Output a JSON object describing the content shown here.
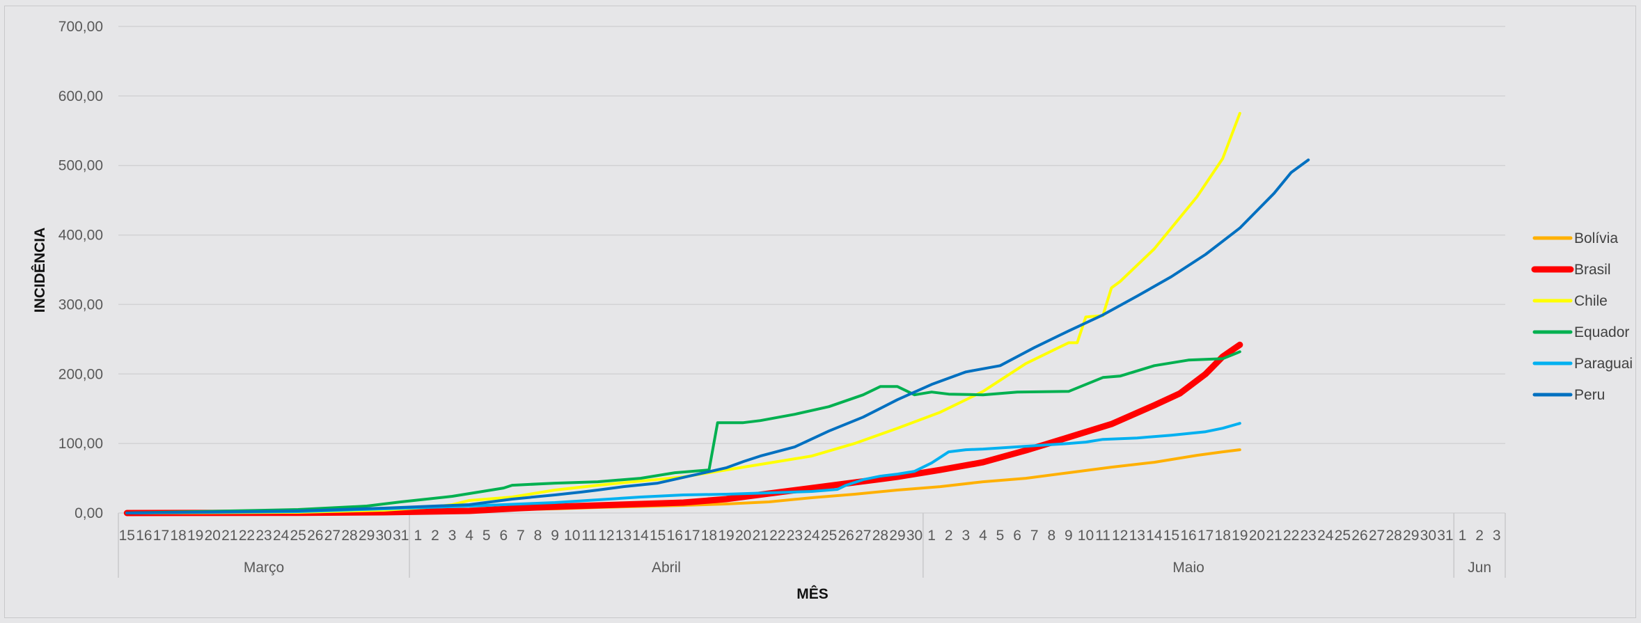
{
  "chart_data": {
    "type": "line",
    "xlabel": "MÊS",
    "ylabel": "INCIDÊNCIA",
    "ylim": [
      0,
      700
    ],
    "y_ticks": [
      "0,00",
      "100,00",
      "200,00",
      "300,00",
      "400,00",
      "500,00",
      "600,00",
      "700,00"
    ],
    "grid": true,
    "legend_position": "right",
    "x_days": [
      "15",
      "16",
      "17",
      "18",
      "19",
      "20",
      "21",
      "22",
      "23",
      "24",
      "25",
      "26",
      "27",
      "28",
      "29",
      "30",
      "31",
      "1",
      "2",
      "3",
      "4",
      "5",
      "6",
      "7",
      "8",
      "9",
      "10",
      "11",
      "12",
      "13",
      "14",
      "15",
      "16",
      "17",
      "18",
      "19",
      "20",
      "21",
      "22",
      "23",
      "24",
      "25",
      "26",
      "27",
      "28",
      "29",
      "30",
      "1",
      "2",
      "3",
      "4",
      "5",
      "6",
      "7",
      "8",
      "9",
      "10",
      "11",
      "12",
      "13",
      "14",
      "15",
      "16",
      "17",
      "18",
      "19",
      "20",
      "21",
      "22",
      "23",
      "24",
      "25",
      "26",
      "27",
      "28",
      "29",
      "30",
      "31",
      "1",
      "2",
      "3"
    ],
    "months": [
      {
        "label": "Março",
        "start": 0,
        "end": 16
      },
      {
        "label": "Abril",
        "start": 17,
        "end": 46
      },
      {
        "label": "Maio",
        "start": 47,
        "end": 77
      },
      {
        "label": "Jun",
        "start": 78,
        "end": 80
      }
    ],
    "series": [
      {
        "name": "Bolívia",
        "color": "#FFB000",
        "width": 4,
        "keys": [
          [
            0,
            0
          ],
          [
            20,
            0.5
          ],
          [
            30,
            2
          ],
          [
            40,
            4
          ],
          [
            50,
            6
          ],
          [
            55,
            8
          ],
          [
            65,
            11
          ],
          [
            70,
            13
          ],
          [
            75,
            16
          ],
          [
            80,
            22
          ],
          [
            85,
            27
          ],
          [
            90,
            33
          ],
          [
            95,
            38
          ],
          [
            100,
            45
          ],
          [
            105,
            50
          ],
          [
            110,
            58
          ],
          [
            115,
            66
          ],
          [
            120,
            73
          ],
          [
            125,
            83
          ],
          [
            128,
            88
          ],
          [
            130,
            91
          ]
        ]
      },
      {
        "name": "Brasil",
        "color": "#FF0000",
        "width": 9,
        "keys": [
          [
            0,
            0
          ],
          [
            20,
            0.3
          ],
          [
            30,
            1
          ],
          [
            35,
            2
          ],
          [
            40,
            3
          ],
          [
            43,
            5
          ],
          [
            46,
            7
          ],
          [
            50,
            9
          ],
          [
            55,
            11
          ],
          [
            60,
            13
          ],
          [
            65,
            15
          ],
          [
            70,
            20
          ],
          [
            75,
            28
          ],
          [
            80,
            36
          ],
          [
            85,
            44
          ],
          [
            90,
            52
          ],
          [
            95,
            62
          ],
          [
            100,
            73
          ],
          [
            105,
            90
          ],
          [
            110,
            109
          ],
          [
            115,
            128
          ],
          [
            120,
            155
          ],
          [
            123,
            172
          ],
          [
            126,
            200
          ],
          [
            128,
            225
          ],
          [
            130,
            242
          ]
        ]
      },
      {
        "name": "Chile",
        "color": "#FFFF00",
        "width": 4,
        "keys": [
          [
            0,
            0
          ],
          [
            20,
            1
          ],
          [
            30,
            4
          ],
          [
            35,
            8
          ],
          [
            38,
            12
          ],
          [
            40,
            18
          ],
          [
            45,
            23
          ],
          [
            50,
            33
          ],
          [
            55,
            40
          ],
          [
            60,
            46
          ],
          [
            65,
            52
          ],
          [
            70,
            62
          ],
          [
            75,
            72
          ],
          [
            80,
            82
          ],
          [
            85,
            100
          ],
          [
            90,
            122
          ],
          [
            95,
            145
          ],
          [
            100,
            175
          ],
          [
            105,
            215
          ],
          [
            110,
            245
          ],
          [
            111,
            245
          ],
          [
            112,
            282
          ],
          [
            113,
            283
          ],
          [
            114,
            284
          ],
          [
            115,
            324
          ],
          [
            116,
            333
          ],
          [
            120,
            380
          ],
          [
            125,
            455
          ],
          [
            128,
            510
          ],
          [
            130,
            575
          ]
        ]
      },
      {
        "name": "Equador",
        "color": "#00B050",
        "width": 4,
        "keys": [
          [
            0,
            0
          ],
          [
            20,
            5
          ],
          [
            28,
            10
          ],
          [
            32,
            16
          ],
          [
            38,
            24
          ],
          [
            44,
            36
          ],
          [
            45,
            40
          ],
          [
            50,
            43
          ],
          [
            55,
            45
          ],
          [
            60,
            50
          ],
          [
            64,
            58
          ],
          [
            68,
            62
          ],
          [
            69,
            130
          ],
          [
            72,
            130
          ],
          [
            74,
            133
          ],
          [
            78,
            142
          ],
          [
            82,
            153
          ],
          [
            86,
            170
          ],
          [
            88,
            182
          ],
          [
            90,
            182
          ],
          [
            92,
            170
          ],
          [
            94,
            174
          ],
          [
            96,
            171
          ],
          [
            100,
            170
          ],
          [
            102,
            172
          ],
          [
            104,
            174
          ],
          [
            110,
            175
          ],
          [
            112,
            185
          ],
          [
            114,
            195
          ],
          [
            116,
            197
          ],
          [
            120,
            212
          ],
          [
            124,
            220
          ],
          [
            128,
            222
          ],
          [
            130,
            232
          ]
        ]
      },
      {
        "name": "Paraguai",
        "color": "#00B0F0",
        "width": 4,
        "keys": [
          [
            0,
            0
          ],
          [
            20,
            2
          ],
          [
            30,
            6
          ],
          [
            40,
            10
          ],
          [
            50,
            15
          ],
          [
            60,
            23
          ],
          [
            65,
            26
          ],
          [
            70,
            27
          ],
          [
            75,
            29
          ],
          [
            80,
            31
          ],
          [
            83,
            34
          ],
          [
            84,
            40
          ],
          [
            86,
            48
          ],
          [
            88,
            53
          ],
          [
            90,
            56
          ],
          [
            92,
            60
          ],
          [
            94,
            72
          ],
          [
            96,
            88
          ],
          [
            98,
            91
          ],
          [
            100,
            92
          ],
          [
            105,
            96
          ],
          [
            110,
            100
          ],
          [
            112,
            102
          ],
          [
            114,
            106
          ],
          [
            118,
            108
          ],
          [
            122,
            112
          ],
          [
            126,
            117
          ],
          [
            128,
            122
          ],
          [
            130,
            129
          ]
        ]
      },
      {
        "name": "Peru",
        "color": "#0070C0",
        "width": 4,
        "keys": [
          [
            0,
            0
          ],
          [
            20,
            3
          ],
          [
            30,
            7
          ],
          [
            40,
            12
          ],
          [
            45,
            20
          ],
          [
            50,
            26
          ],
          [
            53,
            30
          ],
          [
            55,
            33
          ],
          [
            58,
            38
          ],
          [
            62,
            43
          ],
          [
            66,
            54
          ],
          [
            70,
            65
          ],
          [
            72,
            74
          ],
          [
            74,
            82
          ],
          [
            78,
            95
          ],
          [
            82,
            118
          ],
          [
            86,
            138
          ],
          [
            90,
            163
          ],
          [
            94,
            185
          ],
          [
            98,
            203
          ],
          [
            102,
            212
          ],
          [
            106,
            238
          ],
          [
            110,
            262
          ],
          [
            114,
            285
          ],
          [
            118,
            312
          ],
          [
            122,
            340
          ],
          [
            126,
            372
          ],
          [
            130,
            410
          ],
          [
            134,
            460
          ],
          [
            136,
            490
          ],
          [
            138,
            508
          ]
        ]
      }
    ]
  }
}
